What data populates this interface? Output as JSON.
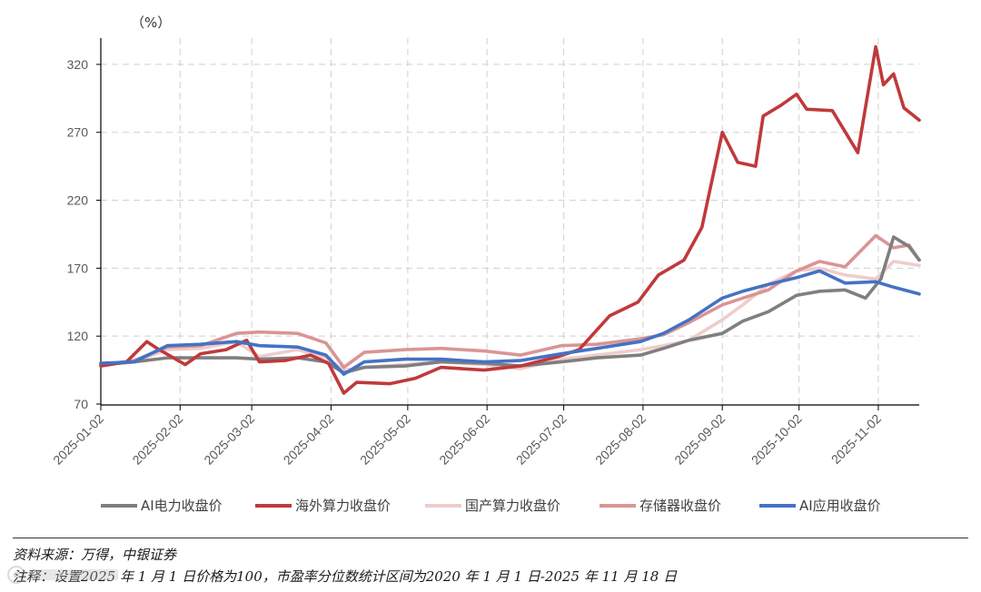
{
  "chart_data": {
    "type": "line",
    "unit_label": "（%）",
    "ylim": [
      70,
      340
    ],
    "yticks": [
      70,
      120,
      170,
      220,
      270,
      320
    ],
    "x_ticks": [
      "2025-01-02",
      "2025-02-02",
      "2025-03-02",
      "2025-04-02",
      "2025-05-02",
      "2025-06-02",
      "2025-07-02",
      "2025-08-02",
      "2025-09-02",
      "2025-10-02",
      "2025-11-02"
    ],
    "x_range": [
      "2025-01-02",
      "2025-11-18"
    ],
    "grid": true,
    "legend_position": "bottom",
    "series": [
      {
        "name": "AI电力收盘价",
        "color": "#7f7f7f",
        "points": [
          [
            "2025-01-02",
            99
          ],
          [
            "2025-01-15",
            101
          ],
          [
            "2025-01-28",
            104
          ],
          [
            "2025-02-10",
            104
          ],
          [
            "2025-02-24",
            104
          ],
          [
            "2025-03-05",
            103
          ],
          [
            "2025-03-20",
            104
          ],
          [
            "2025-03-31",
            101
          ],
          [
            "2025-04-07",
            93
          ],
          [
            "2025-04-15",
            97
          ],
          [
            "2025-05-01",
            98
          ],
          [
            "2025-05-15",
            101
          ],
          [
            "2025-06-01",
            100
          ],
          [
            "2025-06-15",
            98
          ],
          [
            "2025-07-01",
            101
          ],
          [
            "2025-07-15",
            104
          ],
          [
            "2025-08-01",
            106
          ],
          [
            "2025-08-10",
            111
          ],
          [
            "2025-08-20",
            117
          ],
          [
            "2025-09-02",
            122
          ],
          [
            "2025-09-10",
            131
          ],
          [
            "2025-09-20",
            138
          ],
          [
            "2025-10-01",
            150
          ],
          [
            "2025-10-10",
            153
          ],
          [
            "2025-10-20",
            154
          ],
          [
            "2025-10-28",
            148
          ],
          [
            "2025-11-03",
            162
          ],
          [
            "2025-11-08",
            193
          ],
          [
            "2025-11-14",
            186
          ],
          [
            "2025-11-18",
            176
          ]
        ]
      },
      {
        "name": "海外算力收盘价",
        "color": "#c0393b",
        "points": [
          [
            "2025-01-02",
            98
          ],
          [
            "2025-01-12",
            101
          ],
          [
            "2025-01-20",
            116
          ],
          [
            "2025-01-24",
            111
          ],
          [
            "2025-02-04",
            99
          ],
          [
            "2025-02-10",
            107
          ],
          [
            "2025-02-20",
            110
          ],
          [
            "2025-02-28",
            117
          ],
          [
            "2025-03-05",
            101
          ],
          [
            "2025-03-15",
            102
          ],
          [
            "2025-03-25",
            106
          ],
          [
            "2025-04-01",
            100
          ],
          [
            "2025-04-07",
            78
          ],
          [
            "2025-04-12",
            86
          ],
          [
            "2025-04-25",
            85
          ],
          [
            "2025-05-05",
            89
          ],
          [
            "2025-05-15",
            97
          ],
          [
            "2025-06-01",
            95
          ],
          [
            "2025-06-15",
            98
          ],
          [
            "2025-06-30",
            105
          ],
          [
            "2025-07-08",
            110
          ],
          [
            "2025-07-20",
            135
          ],
          [
            "2025-07-31",
            145
          ],
          [
            "2025-08-08",
            165
          ],
          [
            "2025-08-18",
            176
          ],
          [
            "2025-08-25",
            200
          ],
          [
            "2025-09-02",
            270
          ],
          [
            "2025-09-08",
            248
          ],
          [
            "2025-09-15",
            245
          ],
          [
            "2025-09-18",
            282
          ],
          [
            "2025-09-25",
            290
          ],
          [
            "2025-10-01",
            298
          ],
          [
            "2025-10-05",
            287
          ],
          [
            "2025-10-15",
            286
          ],
          [
            "2025-10-25",
            255
          ],
          [
            "2025-11-01",
            333
          ],
          [
            "2025-11-04",
            305
          ],
          [
            "2025-11-08",
            313
          ],
          [
            "2025-11-12",
            288
          ],
          [
            "2025-11-18",
            279
          ]
        ]
      },
      {
        "name": "国产算力收盘价",
        "color": "#f0cccc",
        "points": [
          [
            "2025-01-02",
            99
          ],
          [
            "2025-01-15",
            101
          ],
          [
            "2025-01-28",
            110
          ],
          [
            "2025-02-10",
            111
          ],
          [
            "2025-02-24",
            116
          ],
          [
            "2025-03-05",
            105
          ],
          [
            "2025-03-20",
            110
          ],
          [
            "2025-03-31",
            104
          ],
          [
            "2025-04-07",
            95
          ],
          [
            "2025-04-15",
            97
          ],
          [
            "2025-05-01",
            99
          ],
          [
            "2025-05-15",
            101
          ],
          [
            "2025-06-01",
            99
          ],
          [
            "2025-06-15",
            96
          ],
          [
            "2025-07-01",
            103
          ],
          [
            "2025-07-15",
            106
          ],
          [
            "2025-08-01",
            110
          ],
          [
            "2025-08-10",
            113
          ],
          [
            "2025-08-20",
            117
          ],
          [
            "2025-09-02",
            132
          ],
          [
            "2025-09-10",
            143
          ],
          [
            "2025-09-20",
            158
          ],
          [
            "2025-10-01",
            168
          ],
          [
            "2025-10-10",
            170
          ],
          [
            "2025-10-20",
            165
          ],
          [
            "2025-11-01",
            162
          ],
          [
            "2025-11-08",
            175
          ],
          [
            "2025-11-18",
            172
          ]
        ]
      },
      {
        "name": "存储器收盘价",
        "color": "#d99594",
        "points": [
          [
            "2025-01-02",
            99
          ],
          [
            "2025-01-15",
            102
          ],
          [
            "2025-01-28",
            112
          ],
          [
            "2025-02-10",
            113
          ],
          [
            "2025-02-24",
            122
          ],
          [
            "2025-03-05",
            123
          ],
          [
            "2025-03-20",
            122
          ],
          [
            "2025-03-31",
            115
          ],
          [
            "2025-04-07",
            97
          ],
          [
            "2025-04-15",
            108
          ],
          [
            "2025-05-01",
            110
          ],
          [
            "2025-05-15",
            111
          ],
          [
            "2025-06-01",
            109
          ],
          [
            "2025-06-15",
            106
          ],
          [
            "2025-07-01",
            113
          ],
          [
            "2025-07-15",
            114
          ],
          [
            "2025-08-01",
            118
          ],
          [
            "2025-08-10",
            121
          ],
          [
            "2025-08-20",
            130
          ],
          [
            "2025-09-02",
            143
          ],
          [
            "2025-09-10",
            148
          ],
          [
            "2025-09-20",
            154
          ],
          [
            "2025-10-01",
            168
          ],
          [
            "2025-10-10",
            175
          ],
          [
            "2025-10-20",
            171
          ],
          [
            "2025-11-01",
            194
          ],
          [
            "2025-11-08",
            185
          ],
          [
            "2025-11-14",
            187
          ],
          [
            "2025-11-18",
            176
          ]
        ]
      },
      {
        "name": "AI应用收盘价",
        "color": "#4472c4",
        "points": [
          [
            "2025-01-02",
            100
          ],
          [
            "2025-01-15",
            101
          ],
          [
            "2025-01-28",
            113
          ],
          [
            "2025-02-10",
            114
          ],
          [
            "2025-02-24",
            116
          ],
          [
            "2025-03-05",
            113
          ],
          [
            "2025-03-20",
            112
          ],
          [
            "2025-03-31",
            106
          ],
          [
            "2025-04-07",
            92
          ],
          [
            "2025-04-15",
            101
          ],
          [
            "2025-05-01",
            103
          ],
          [
            "2025-05-15",
            103
          ],
          [
            "2025-06-01",
            101
          ],
          [
            "2025-06-15",
            102
          ],
          [
            "2025-07-01",
            107
          ],
          [
            "2025-07-15",
            111
          ],
          [
            "2025-08-01",
            116
          ],
          [
            "2025-08-10",
            122
          ],
          [
            "2025-08-20",
            132
          ],
          [
            "2025-09-02",
            148
          ],
          [
            "2025-09-10",
            153
          ],
          [
            "2025-09-20",
            158
          ],
          [
            "2025-10-01",
            163
          ],
          [
            "2025-10-10",
            168
          ],
          [
            "2025-10-20",
            159
          ],
          [
            "2025-11-01",
            160
          ],
          [
            "2025-11-08",
            156
          ],
          [
            "2025-11-18",
            151
          ]
        ]
      }
    ]
  },
  "footer": {
    "source": "资料来源：万得，中银证券",
    "note": "注释：设置2025 年 1 月 1 日价格为100，市盈率分位数统计区间为2020 年 1 月 1 日-2025 年 11 月 18 日"
  }
}
